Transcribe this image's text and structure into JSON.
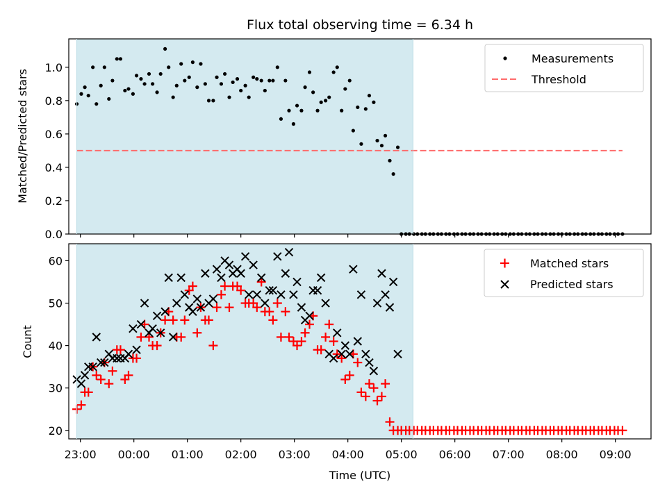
{
  "chart_data": [
    {
      "type": "scatter",
      "title": "Flux total observing time = 6.34 h",
      "ylabel": "Matched/Predicted stars",
      "xlim": [
        "22:47",
        "09:40"
      ],
      "ylim": [
        0,
        1.17
      ],
      "yticks": [
        0.0,
        0.2,
        0.4,
        0.6,
        0.8,
        1.0
      ],
      "ytick_labels": [
        "0.0",
        "0.2",
        "0.4",
        "0.6",
        "0.8",
        "1.0"
      ],
      "shaded_span": {
        "from": "22:56",
        "to": "05:13",
        "color": "#d4eaf0"
      },
      "legend": {
        "location": "upper right"
      },
      "series": [
        {
          "name": "Measurements",
          "marker": "dot",
          "color": "#000000",
          "x": [
            "22:56",
            "23:01",
            "23:05",
            "23:09",
            "23:14",
            "23:18",
            "23:23",
            "23:27",
            "23:32",
            "23:36",
            "23:41",
            "23:45",
            "23:50",
            "23:54",
            "23:59",
            "24:03",
            "24:08",
            "24:12",
            "24:17",
            "24:21",
            "24:26",
            "24:30",
            "24:35",
            "24:39",
            "24:44",
            "24:48",
            "24:53",
            "24:57",
            "25:02",
            "25:06",
            "25:11",
            "25:15",
            "25:20",
            "25:24",
            "25:29",
            "25:33",
            "25:38",
            "25:42",
            "25:47",
            "25:51",
            "25:56",
            "26:00",
            "26:05",
            "26:09",
            "26:14",
            "26:18",
            "26:23",
            "26:27",
            "26:32",
            "26:36",
            "26:41",
            "26:45",
            "26:50",
            "26:54",
            "26:59",
            "27:03",
            "27:08",
            "27:12",
            "27:17",
            "27:21",
            "27:26",
            "27:30",
            "27:35",
            "27:39",
            "27:44",
            "27:48",
            "27:53",
            "27:57",
            "28:02",
            "28:06",
            "28:11",
            "28:15",
            "28:20",
            "28:24",
            "28:29",
            "28:33",
            "28:38",
            "28:42",
            "28:47",
            "28:51",
            "28:56",
            "29:00",
            "29:05",
            "29:09",
            "29:14",
            "29:18",
            "29:23",
            "29:27",
            "29:32",
            "29:36",
            "29:41",
            "29:45",
            "29:50",
            "29:54",
            "29:59",
            "30:03",
            "30:08",
            "30:12",
            "30:17",
            "30:21",
            "30:26",
            "30:30",
            "30:35",
            "30:39",
            "30:44",
            "30:48",
            "30:53",
            "30:57",
            "31:02",
            "31:06",
            "31:11",
            "31:15",
            "31:20",
            "31:24",
            "31:29",
            "31:33",
            "31:38",
            "31:42",
            "31:47",
            "31:51",
            "31:56",
            "32:00",
            "32:05",
            "32:09",
            "32:14",
            "32:18",
            "32:23",
            "32:27",
            "32:32",
            "32:36",
            "32:41",
            "32:45",
            "32:50",
            "32:54",
            "32:59",
            "33:03",
            "33:08"
          ],
          "values": [
            0.78,
            0.84,
            0.88,
            0.83,
            1.0,
            0.78,
            0.89,
            1.0,
            0.81,
            0.92,
            1.05,
            1.05,
            0.86,
            0.87,
            0.84,
            0.95,
            0.93,
            0.9,
            0.96,
            0.9,
            0.85,
            0.96,
            1.11,
            1.0,
            0.82,
            0.89,
            1.02,
            0.92,
            0.94,
            1.03,
            0.88,
            1.02,
            0.9,
            0.8,
            0.8,
            0.94,
            0.9,
            0.96,
            0.82,
            0.91,
            0.93,
            0.86,
            0.89,
            0.82,
            0.94,
            0.93,
            0.92,
            0.86,
            0.92,
            0.92,
            1.0,
            0.69,
            0.92,
            0.74,
            0.66,
            0.77,
            0.74,
            0.88,
            0.97,
            0.85,
            0.74,
            0.79,
            0.8,
            0.82,
            0.97,
            1.0,
            0.74,
            0.87,
            0.92,
            0.62,
            0.76,
            0.54,
            0.75,
            0.83,
            0.79,
            0.56,
            0.53,
            0.59,
            0.44,
            0.36,
            0.52,
            0.0,
            0.0,
            0.0,
            0.0,
            0.0,
            0.0,
            0.0,
            0.0,
            0.0,
            0.0,
            0.0,
            0.0,
            0.0,
            0.0,
            0.0,
            0.0,
            0.0,
            0.0,
            0.0,
            0.0,
            0.0,
            0.0,
            0.0,
            0.0,
            0.0,
            0.0,
            0.0,
            0.0,
            0.0,
            0.0,
            0.0,
            0.0,
            0.0,
            0.0,
            0.0,
            0.0,
            0.0,
            0.0,
            0.0,
            0.0,
            0.0,
            0.0,
            0.0,
            0.0,
            0.0,
            0.0,
            0.0,
            0.0,
            0.0,
            0.0,
            0.0,
            0.0,
            0.0,
            0.0,
            0.0,
            0.0
          ]
        },
        {
          "name": "Threshold",
          "marker": "dashed-line",
          "color": "#ff6b6b",
          "x": [
            "22:56",
            "33:08"
          ],
          "values": [
            0.5,
            0.5
          ]
        }
      ]
    },
    {
      "type": "scatter",
      "xlabel": "Time (UTC)",
      "ylabel": "Count",
      "xlim": [
        "22:47",
        "09:40"
      ],
      "ylim": [
        18,
        64
      ],
      "yticks": [
        20,
        30,
        40,
        50,
        60
      ],
      "ytick_labels": [
        "20",
        "30",
        "40",
        "50",
        "60"
      ],
      "xtick_labels": [
        "23:00",
        "00:00",
        "01:00",
        "02:00",
        "03:00",
        "04:00",
        "05:00",
        "06:00",
        "07:00",
        "08:00",
        "09:00"
      ],
      "shaded_span": {
        "from": "22:56",
        "to": "05:13",
        "color": "#d4eaf0"
      },
      "legend": {
        "location": "upper right"
      },
      "series": [
        {
          "name": "Matched stars",
          "marker": "plus",
          "color": "#ff0000",
          "x": [
            "22:56",
            "23:01",
            "23:05",
            "23:09",
            "23:14",
            "23:18",
            "23:23",
            "23:27",
            "23:32",
            "23:36",
            "23:41",
            "23:45",
            "23:50",
            "23:54",
            "23:59",
            "24:03",
            "24:08",
            "24:12",
            "24:17",
            "24:21",
            "24:26",
            "24:30",
            "24:35",
            "24:39",
            "24:44",
            "24:48",
            "24:53",
            "24:57",
            "25:02",
            "25:06",
            "25:11",
            "25:15",
            "25:20",
            "25:24",
            "25:29",
            "25:33",
            "25:38",
            "25:42",
            "25:47",
            "25:51",
            "25:56",
            "26:00",
            "26:05",
            "26:09",
            "26:14",
            "26:18",
            "26:23",
            "26:27",
            "26:32",
            "26:36",
            "26:41",
            "26:45",
            "26:50",
            "26:54",
            "26:59",
            "27:03",
            "27:08",
            "27:12",
            "27:17",
            "27:21",
            "27:26",
            "27:30",
            "27:35",
            "27:39",
            "27:44",
            "27:48",
            "27:53",
            "27:57",
            "28:02",
            "28:06",
            "28:11",
            "28:15",
            "28:20",
            "28:24",
            "28:29",
            "28:33",
            "28:38",
            "28:42",
            "28:47",
            "28:51",
            "28:56",
            "29:00",
            "29:05",
            "29:09",
            "29:14",
            "29:18",
            "29:23",
            "29:27",
            "29:32",
            "29:36",
            "29:41",
            "29:45",
            "29:50",
            "29:54",
            "29:59",
            "30:03",
            "30:08",
            "30:12",
            "30:17",
            "30:21",
            "30:26",
            "30:30",
            "30:35",
            "30:39",
            "30:44",
            "30:48",
            "30:53",
            "30:57",
            "31:02",
            "31:06",
            "31:11",
            "31:15",
            "31:20",
            "31:24",
            "31:29",
            "31:33",
            "31:38",
            "31:42",
            "31:47",
            "31:51",
            "31:56",
            "32:00",
            "32:05",
            "32:09",
            "32:14",
            "32:18",
            "32:23",
            "32:27",
            "32:32",
            "32:36",
            "32:41",
            "32:45",
            "32:50",
            "32:54",
            "32:59",
            "33:03",
            "33:08"
          ],
          "values": [
            25,
            26,
            29,
            29,
            35,
            33,
            32,
            36,
            31,
            34,
            39,
            39,
            32,
            33,
            37,
            37,
            42,
            45,
            42,
            40,
            40,
            43,
            46,
            48,
            46,
            42,
            42,
            46,
            53,
            54,
            43,
            49,
            46,
            46,
            40,
            49,
            52,
            54,
            49,
            54,
            54,
            53,
            50,
            50,
            50,
            49,
            55,
            48,
            48,
            46,
            50,
            42,
            48,
            42,
            41,
            40,
            41,
            43,
            45,
            47,
            39,
            39,
            42,
            45,
            41,
            38,
            37,
            32,
            33,
            38,
            36,
            29,
            28,
            31,
            30,
            27,
            28,
            31,
            22,
            20,
            20,
            20,
            20,
            20,
            20,
            20,
            20,
            20,
            20,
            20,
            20,
            20,
            20,
            20,
            20,
            20,
            20,
            20,
            20,
            20,
            20,
            20,
            20,
            20,
            20,
            20,
            20,
            20,
            20,
            20,
            20,
            20,
            20,
            20,
            20,
            20,
            20,
            20,
            20,
            20,
            20,
            20,
            20,
            20,
            20,
            20,
            20,
            20,
            20,
            20,
            20,
            20,
            20,
            20,
            20,
            20,
            20
          ]
        },
        {
          "name": "Predicted stars",
          "marker": "x",
          "color": "#000000",
          "x": [
            "22:56",
            "23:01",
            "23:05",
            "23:09",
            "23:14",
            "23:18",
            "23:23",
            "23:27",
            "23:32",
            "23:36",
            "23:41",
            "23:45",
            "23:50",
            "23:54",
            "23:59",
            "24:03",
            "24:08",
            "24:12",
            "24:17",
            "24:21",
            "24:26",
            "24:30",
            "24:35",
            "24:39",
            "24:44",
            "24:48",
            "24:53",
            "24:57",
            "25:02",
            "25:06",
            "25:11",
            "25:15",
            "25:20",
            "25:24",
            "25:29",
            "25:33",
            "25:38",
            "25:42",
            "25:47",
            "25:51",
            "25:56",
            "26:00",
            "26:05",
            "26:09",
            "26:14",
            "26:18",
            "26:23",
            "26:27",
            "26:32",
            "26:36",
            "26:41",
            "26:45",
            "26:50",
            "26:54",
            "26:59",
            "27:03",
            "27:08",
            "27:12",
            "27:17",
            "27:21",
            "27:26",
            "27:30",
            "27:35",
            "27:39",
            "27:44",
            "27:48",
            "27:53",
            "27:57",
            "28:02",
            "28:06",
            "28:11",
            "28:15",
            "28:20",
            "28:24",
            "28:29",
            "28:33",
            "28:38",
            "28:42",
            "28:47",
            "28:51",
            "28:56"
          ],
          "values": [
            32,
            31,
            33,
            35,
            35,
            42,
            36,
            36,
            38,
            37,
            37,
            37,
            37,
            38,
            44,
            39,
            45,
            50,
            43,
            44,
            47,
            43,
            48,
            56,
            42,
            50,
            56,
            52,
            49,
            48,
            51,
            49,
            57,
            50,
            51,
            58,
            56,
            60,
            59,
            57,
            58,
            57,
            61,
            52,
            59,
            52,
            56,
            50,
            53,
            53,
            61,
            52,
            57,
            62,
            52,
            55,
            49,
            46,
            47,
            53,
            53,
            56,
            50,
            38,
            37,
            43,
            38,
            40,
            38,
            58,
            41,
            52,
            38,
            36,
            34,
            50,
            57,
            52,
            49,
            55,
            38
          ]
        }
      ]
    }
  ]
}
